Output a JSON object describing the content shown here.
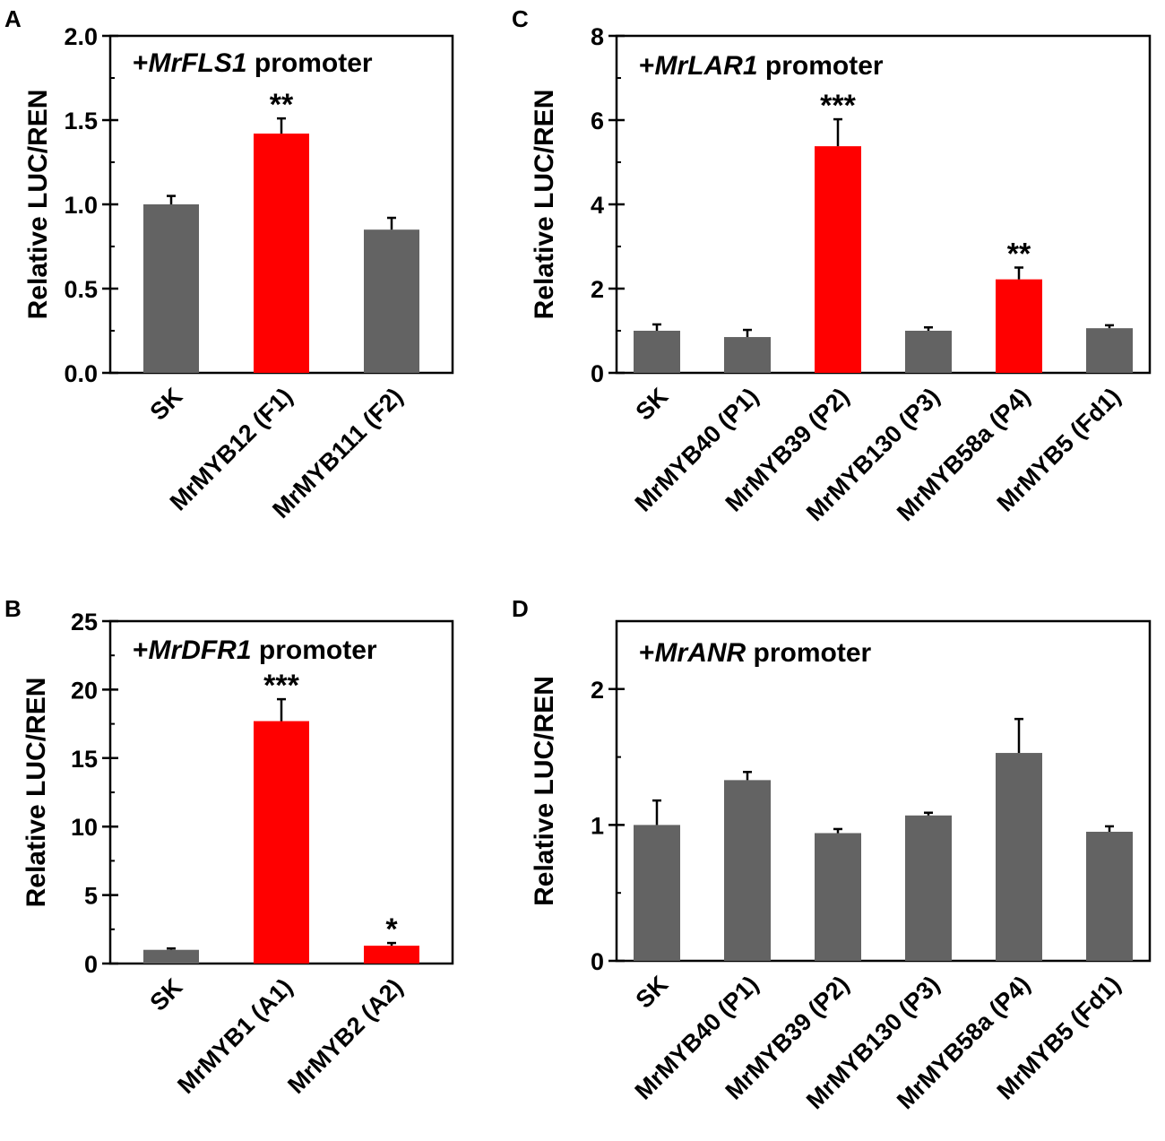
{
  "colors": {
    "gray": "#636363",
    "red": "#ff0000",
    "axis": "#000000"
  },
  "chart_data": [
    {
      "id": "A",
      "panel_label": "A",
      "type": "bar",
      "title_prefix": "+",
      "title_gene": "MrFLS1",
      "title_suffix": " promoter",
      "ylabel": "Relative LUC/REN",
      "ylim": [
        0,
        2.0
      ],
      "yticks": [
        "0.0",
        "0.5",
        "1.0",
        "1.5",
        "2.0"
      ],
      "minor_step": 0.25,
      "categories": [
        "SK",
        "MrMYB12 (F1)",
        "MrMYB111 (F2)"
      ],
      "values": [
        1.0,
        1.42,
        0.85
      ],
      "errors": [
        0.05,
        0.09,
        0.07
      ],
      "highlight": [
        false,
        true,
        false
      ],
      "significance": [
        "",
        "**",
        ""
      ]
    },
    {
      "id": "B",
      "panel_label": "B",
      "type": "bar",
      "title_prefix": "+",
      "title_gene": "MrDFR1",
      "title_suffix": " promoter",
      "ylabel": "Relative LUC/REN",
      "ylim": [
        0,
        25
      ],
      "yticks": [
        "0",
        "5",
        "10",
        "15",
        "20",
        "25"
      ],
      "minor_step": 2.5,
      "categories": [
        "SK",
        "MrMYB1 (A1)",
        "MrMYB2 (A2)"
      ],
      "values": [
        1.0,
        17.7,
        1.3
      ],
      "errors": [
        0.1,
        1.6,
        0.2
      ],
      "highlight": [
        false,
        true,
        true
      ],
      "significance": [
        "",
        "***",
        "*"
      ]
    },
    {
      "id": "C",
      "panel_label": "C",
      "type": "bar",
      "title_prefix": "+",
      "title_gene": "MrLAR1",
      "title_suffix": " promoter",
      "ylabel": "Relative LUC/REN",
      "ylim": [
        0,
        8
      ],
      "yticks": [
        "0",
        "2",
        "4",
        "6",
        "8"
      ],
      "minor_step": 1,
      "categories": [
        "SK",
        "MrMYB40 (P1)",
        "MrMYB39 (P2)",
        "MrMYB130 (P3)",
        "MrMYB58a (P4)",
        "MrMYB5 (Fd1)"
      ],
      "values": [
        1.0,
        0.85,
        5.38,
        1.0,
        2.22,
        1.06
      ],
      "errors": [
        0.15,
        0.17,
        0.64,
        0.08,
        0.28,
        0.07
      ],
      "highlight": [
        false,
        false,
        true,
        false,
        true,
        false
      ],
      "significance": [
        "",
        "",
        "***",
        "",
        "**",
        ""
      ]
    },
    {
      "id": "D",
      "panel_label": "D",
      "type": "bar",
      "title_prefix": "+",
      "title_gene": "MrANR",
      "title_suffix": " promoter",
      "ylabel": "Relative LUC/REN",
      "ylim": [
        0,
        2.5
      ],
      "yticks": [
        "0",
        "1",
        "2"
      ],
      "minor_step": 0.5,
      "categories": [
        "SK",
        "MrMYB40 (P1)",
        "MrMYB39 (P2)",
        "MrMYB130 (P3)",
        "MrMYB58a (P4)",
        "MrMYB5 (Fd1)"
      ],
      "values": [
        1.0,
        1.33,
        0.94,
        1.07,
        1.53,
        0.95
      ],
      "errors": [
        0.18,
        0.06,
        0.03,
        0.02,
        0.25,
        0.04
      ],
      "highlight": [
        false,
        false,
        false,
        false,
        false,
        false
      ],
      "significance": [
        "",
        "",
        "",
        "",
        "",
        ""
      ]
    }
  ]
}
